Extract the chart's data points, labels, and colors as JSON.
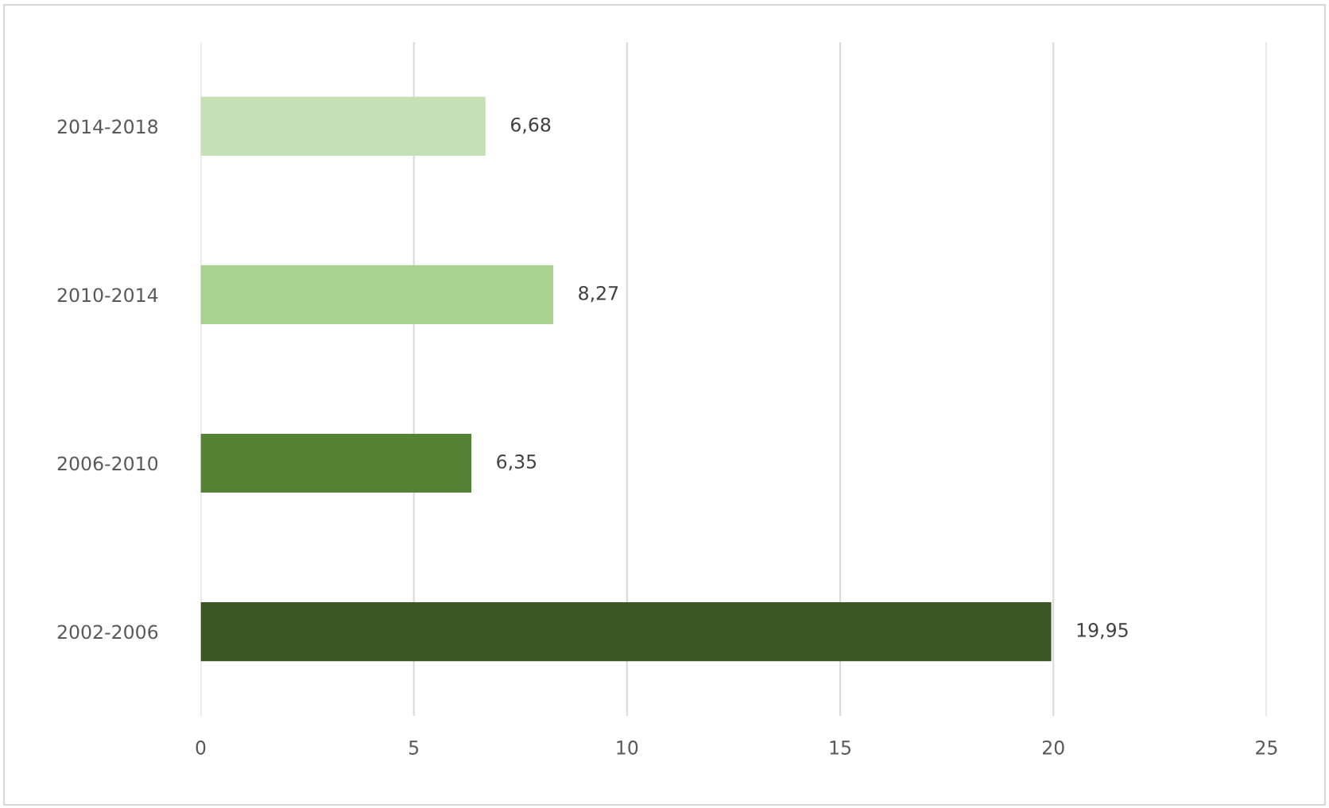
{
  "chart_data": {
    "type": "bar",
    "orientation": "horizontal",
    "categories": [
      "2014-2018",
      "2010-2014",
      "2006-2010",
      "2002-2006"
    ],
    "values": [
      6.68,
      8.27,
      6.35,
      19.95
    ],
    "colors": [
      "#c5e0b4",
      "#a9d18e",
      "#548235",
      "#385723"
    ],
    "value_labels": [
      "6,68",
      "8,27",
      "6,35",
      "19,95"
    ],
    "xlim": [
      0,
      25
    ],
    "xticks": [
      0,
      5,
      10,
      15,
      20,
      25
    ],
    "grid": "x",
    "legend": false
  }
}
